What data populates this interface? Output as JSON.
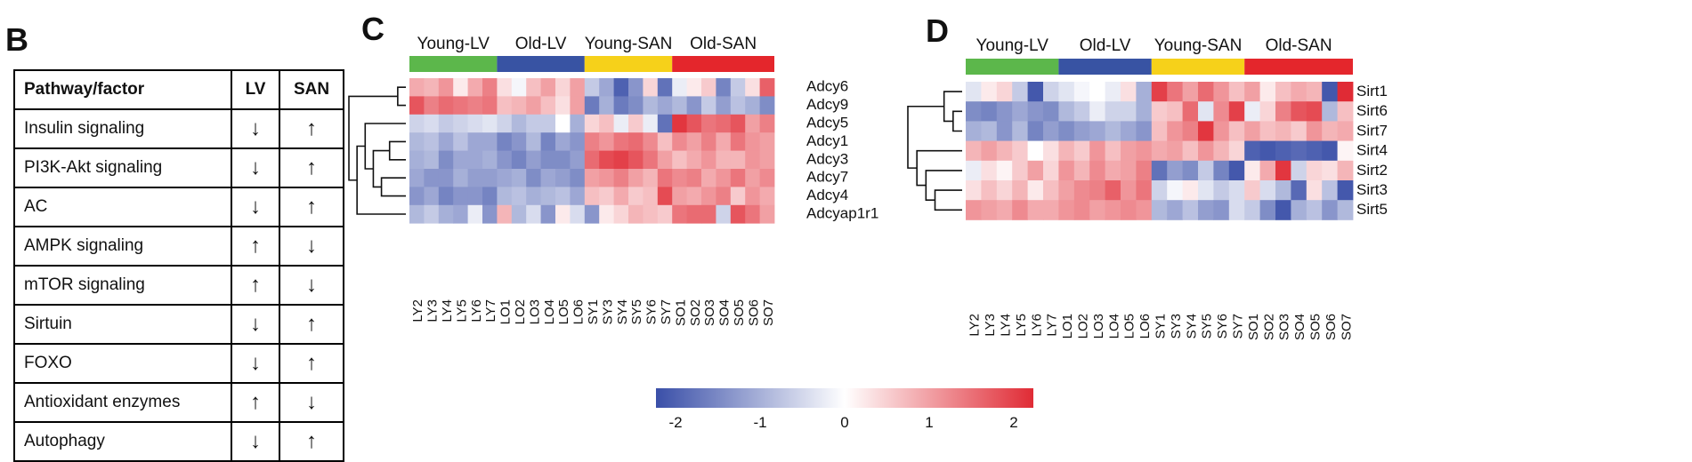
{
  "panels": {
    "b": "B",
    "c": "C",
    "d": "D"
  },
  "table": {
    "headers": [
      "Pathway/factor",
      "LV",
      "SAN"
    ],
    "rows": [
      {
        "name": "Insulin signaling",
        "lv": "↓",
        "san": "↑"
      },
      {
        "name": "PI3K-Akt signaling",
        "lv": "↓",
        "san": "↑"
      },
      {
        "name": "AC",
        "lv": "↓",
        "san": "↑"
      },
      {
        "name": "AMPK signaling",
        "lv": "↑",
        "san": "↓"
      },
      {
        "name": "mTOR signaling",
        "lv": "↑",
        "san": "↓"
      },
      {
        "name": "Sirtuin",
        "lv": "↓",
        "san": "↑"
      },
      {
        "name": "FOXO",
        "lv": "↓",
        "san": "↑"
      },
      {
        "name": "Antioxidant enzymes",
        "lv": "↑",
        "san": "↓"
      },
      {
        "name": "Autophagy",
        "lv": "↓",
        "san": "↑"
      }
    ]
  },
  "colors": {
    "low": "#3a4fa8",
    "mid": "#ffffff",
    "high": "#e02b35",
    "young_lv": "#5cb74b",
    "old_lv": "#3853a3",
    "young_san": "#f6d11a",
    "old_san": "#e4262c"
  },
  "chart_data": [
    {
      "type": "heatmap",
      "title": "",
      "groups": [
        {
          "name": "Young-LV",
          "color": "#5cb74b",
          "span": 6
        },
        {
          "name": "Old-LV",
          "color": "#3853a3",
          "span": 6
        },
        {
          "name": "Young-SAN",
          "color": "#f6d11a",
          "span": 6
        },
        {
          "name": "Old-SAN",
          "color": "#e4262c",
          "span": 7
        }
      ],
      "columns": [
        "LY2",
        "LY3",
        "LY4",
        "LY5",
        "LY6",
        "LY7",
        "LO1",
        "LO2",
        "LO3",
        "LO4",
        "LO5",
        "LO6",
        "SY1",
        "SY3",
        "SY4",
        "SY5",
        "SY6",
        "SY7",
        "SO1",
        "SO2",
        "SO3",
        "SO4",
        "SO5",
        "SO6",
        "SO7"
      ],
      "rows": [
        "Adcy6",
        "Adcy9",
        "Adcy5",
        "Adcy1",
        "Adcy3",
        "Adcy7",
        "Adcy4",
        "Adcyap1r1"
      ],
      "values": [
        [
          0.8,
          0.7,
          1.0,
          0.2,
          0.8,
          1.2,
          0.3,
          -0.1,
          0.6,
          0.9,
          0.4,
          0.9,
          -0.6,
          -1.0,
          -1.8,
          -1.2,
          0.4,
          -1.6,
          -0.2,
          0.2,
          0.5,
          -1.4,
          -0.6,
          0.3,
          1.5
        ],
        [
          1.6,
          1.2,
          1.4,
          1.3,
          1.2,
          1.3,
          0.6,
          0.7,
          0.9,
          0.6,
          0.3,
          0.9,
          -1.5,
          -0.9,
          -1.5,
          -1.3,
          -0.8,
          -1.0,
          -0.8,
          -1.2,
          -0.6,
          -1.1,
          -0.7,
          -0.9,
          -1.3
        ],
        [
          -0.5,
          -0.4,
          -0.6,
          -0.5,
          -0.4,
          -0.3,
          -0.5,
          -0.8,
          -0.6,
          -0.6,
          0.0,
          -0.9,
          0.4,
          0.6,
          -0.2,
          0.5,
          -0.2,
          -1.6,
          1.9,
          1.6,
          1.3,
          1.4,
          1.6,
          0.9,
          1.2
        ],
        [
          -0.8,
          -0.7,
          -1.0,
          -0.7,
          -1.0,
          -1.0,
          -1.4,
          -1.2,
          -0.8,
          -1.4,
          -1.0,
          -1.2,
          1.2,
          1.0,
          1.3,
          1.4,
          1.1,
          0.6,
          1.1,
          0.9,
          1.2,
          0.8,
          1.3,
          1.0,
          0.9
        ],
        [
          -0.9,
          -0.8,
          -1.3,
          -1.0,
          -1.0,
          -0.9,
          -1.2,
          -1.4,
          -1.1,
          -1.3,
          -1.3,
          -1.1,
          1.4,
          1.7,
          1.8,
          1.6,
          1.3,
          0.9,
          0.6,
          0.8,
          1.0,
          0.7,
          0.7,
          1.0,
          0.9
        ],
        [
          -1.0,
          -1.2,
          -1.2,
          -0.9,
          -1.1,
          -1.1,
          -1.0,
          -0.9,
          -1.3,
          -1.0,
          -1.1,
          -1.3,
          0.9,
          1.0,
          1.2,
          0.9,
          0.7,
          1.3,
          1.1,
          1.2,
          0.8,
          1.0,
          1.3,
          0.9,
          1.1
        ],
        [
          -1.2,
          -1.0,
          -1.4,
          -1.2,
          -1.2,
          -1.4,
          -0.8,
          -0.7,
          -0.9,
          -0.8,
          -0.7,
          -1.0,
          0.6,
          0.5,
          0.8,
          0.5,
          0.6,
          1.7,
          0.9,
          0.8,
          1.0,
          1.2,
          0.5,
          1.0,
          0.8
        ],
        [
          -0.8,
          -0.6,
          -0.9,
          -1.0,
          -0.2,
          -1.2,
          0.7,
          -0.8,
          -0.4,
          -1.2,
          0.2,
          -0.4,
          -1.2,
          0.2,
          0.4,
          0.7,
          0.6,
          0.5,
          1.3,
          1.4,
          1.4,
          -0.5,
          1.6,
          1.3,
          0.9
        ]
      ]
    },
    {
      "type": "heatmap",
      "title": "",
      "groups": [
        {
          "name": "Young-LV",
          "color": "#5cb74b",
          "span": 6
        },
        {
          "name": "Old-LV",
          "color": "#3853a3",
          "span": 6
        },
        {
          "name": "Young-SAN",
          "color": "#f6d11a",
          "span": 6
        },
        {
          "name": "Old-SAN",
          "color": "#e4262c",
          "span": 7
        }
      ],
      "columns": [
        "LY2",
        "LY3",
        "LY4",
        "LY5",
        "LY6",
        "LY7",
        "LO1",
        "LO2",
        "LO3",
        "LO4",
        "LO5",
        "LO6",
        "SY1",
        "SY3",
        "SY4",
        "SY5",
        "SY6",
        "SY7",
        "SO1",
        "SO2",
        "SO3",
        "SO4",
        "SO5",
        "SO6",
        "SO7"
      ],
      "rows": [
        "Sirt1",
        "Sirt6",
        "Sirt7",
        "Sirt4",
        "Sirt2",
        "Sirt3",
        "Sirt5"
      ],
      "values": [
        [
          -0.3,
          0.2,
          0.4,
          -0.6,
          -1.9,
          -0.5,
          -0.3,
          -0.1,
          0.0,
          -0.2,
          0.3,
          -0.9,
          1.8,
          1.3,
          0.9,
          1.4,
          1.0,
          0.6,
          0.9,
          0.2,
          0.6,
          0.8,
          0.7,
          -1.9,
          2.0
        ],
        [
          -1.3,
          -1.4,
          -1.2,
          -1.0,
          -1.2,
          -1.3,
          -0.8,
          -0.6,
          -0.2,
          -0.5,
          -0.5,
          -0.9,
          0.5,
          0.6,
          1.4,
          -0.3,
          1.1,
          1.8,
          -0.2,
          0.4,
          1.2,
          1.6,
          1.7,
          -0.8,
          0.6
        ],
        [
          -0.9,
          -0.8,
          -1.2,
          -0.8,
          -1.4,
          -1.1,
          -1.3,
          -1.1,
          -1.0,
          -0.8,
          -1.0,
          -1.2,
          0.6,
          1.0,
          1.2,
          1.9,
          1.0,
          0.6,
          0.9,
          0.6,
          0.7,
          0.5,
          1.0,
          0.7,
          0.8
        ],
        [
          0.7,
          0.9,
          0.7,
          0.5,
          0.0,
          0.3,
          0.7,
          0.5,
          1.0,
          0.6,
          0.9,
          1.0,
          0.8,
          0.9,
          0.6,
          1.0,
          0.7,
          0.4,
          -1.8,
          -1.9,
          -1.8,
          -1.7,
          -1.8,
          -1.9,
          0.1
        ],
        [
          -0.2,
          0.3,
          0.1,
          0.5,
          0.9,
          0.4,
          1.0,
          0.7,
          1.1,
          0.8,
          0.9,
          1.2,
          -1.6,
          -1.1,
          -1.3,
          -0.6,
          -1.4,
          -1.9,
          0.2,
          0.8,
          1.9,
          -0.5,
          0.4,
          0.3,
          0.7
        ],
        [
          0.3,
          0.6,
          0.4,
          0.7,
          0.2,
          0.6,
          0.9,
          1.1,
          1.2,
          1.5,
          1.0,
          1.3,
          -0.5,
          -0.1,
          0.2,
          -0.3,
          -0.6,
          -0.4,
          0.5,
          -0.4,
          -0.8,
          -1.7,
          0.3,
          -0.7,
          -1.9
        ],
        [
          1.0,
          0.9,
          0.8,
          1.1,
          0.8,
          0.8,
          1.0,
          1.1,
          0.9,
          1.0,
          1.1,
          1.0,
          -0.8,
          -1.0,
          -0.7,
          -1.1,
          -1.2,
          -0.4,
          -0.6,
          -1.3,
          -1.9,
          -0.9,
          -0.7,
          -1.2,
          -0.8
        ]
      ]
    }
  ],
  "legend": {
    "ticks": [
      "-2",
      "-1",
      "0",
      "1",
      "2"
    ],
    "range": [
      -2,
      2
    ]
  }
}
